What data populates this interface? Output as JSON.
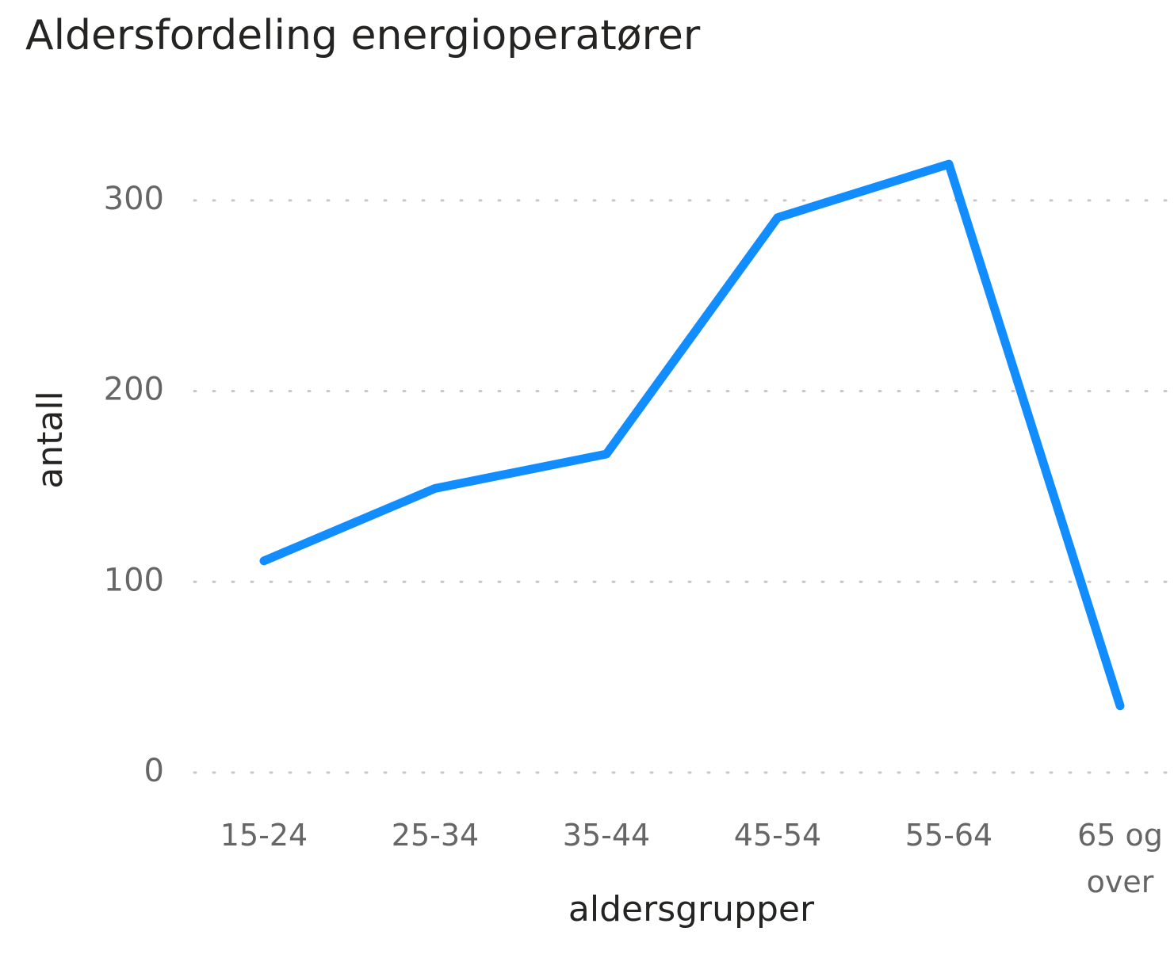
{
  "chart_data": {
    "type": "line",
    "title": "Aldersfordeling energioperatører",
    "x_label": "aldersgrupper",
    "y_label": "antall",
    "categories": [
      "15-24",
      "25-34",
      "35-44",
      "45-54",
      "55-64",
      "65 og over"
    ],
    "series": [
      {
        "name": "antall",
        "color": "#118dff",
        "values": [
          111,
          149,
          167,
          291,
          319,
          35
        ]
      }
    ],
    "ylim": [
      0,
      330
    ],
    "yticks": [
      0,
      100,
      200,
      300
    ],
    "grid": true
  }
}
